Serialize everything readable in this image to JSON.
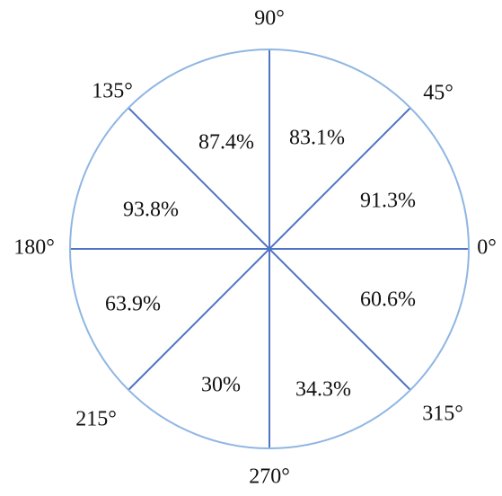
{
  "angles": [
    "90°",
    "45°",
    "0°",
    "315°",
    "270°",
    "215°",
    "180°",
    "135°"
  ],
  "sectors": [
    "83.1%",
    "91.3%",
    "60.6%",
    "34.3%",
    "30%",
    "63.9%",
    "93.8%",
    "87.4%"
  ]
}
